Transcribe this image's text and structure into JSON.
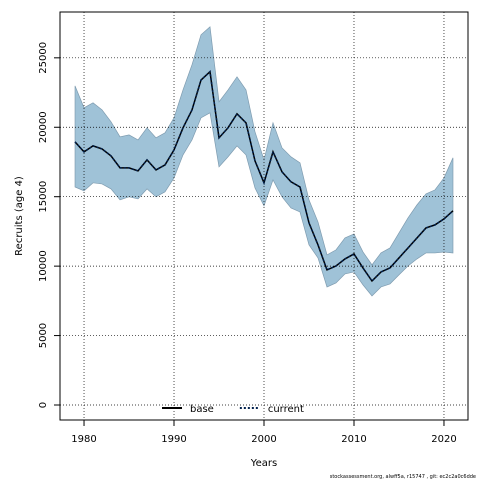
{
  "chart_data": {
    "type": "line",
    "xlabel": "Years",
    "ylabel": "Recruits (age 4)",
    "footnote": "stockassessment.org, alwff5a, r15747 , git: ec2c2a0c6dde",
    "x": [
      1979,
      1980,
      1981,
      1982,
      1983,
      1984,
      1985,
      1986,
      1987,
      1988,
      1989,
      1990,
      1991,
      1992,
      1993,
      1994,
      1995,
      1996,
      1997,
      1998,
      1999,
      2000,
      2001,
      2002,
      2003,
      2004,
      2005,
      2006,
      2007,
      2008,
      2009,
      2010,
      2011,
      2012,
      2013,
      2014,
      2015,
      2016,
      2017,
      2018,
      2019,
      2020,
      2021
    ],
    "series": [
      {
        "name": "base",
        "color": "#000000",
        "dash": false,
        "values": [
          18950,
          18230,
          18660,
          18440,
          17940,
          17075,
          17075,
          16860,
          17650,
          16930,
          17290,
          18370,
          19960,
          21250,
          23400,
          24000,
          19240,
          19960,
          20970,
          20320,
          17580,
          16000,
          18230,
          16790,
          16070,
          15700,
          13110,
          11530,
          9730,
          10010,
          10520,
          10880,
          9870,
          8930,
          9580,
          9870,
          10590,
          11310,
          12030,
          12750,
          12970,
          13400,
          13980
        ]
      },
      {
        "name": "current",
        "color": "#00204d",
        "dash": true,
        "values": [
          18950,
          18230,
          18660,
          18440,
          17940,
          17075,
          17075,
          16860,
          17650,
          16930,
          17290,
          18370,
          19960,
          21250,
          23400,
          24000,
          19240,
          19960,
          20970,
          20320,
          17580,
          16000,
          18230,
          16790,
          16070,
          15700,
          13110,
          11530,
          9730,
          10010,
          10520,
          10880,
          9870,
          8930,
          9580,
          9870,
          10590,
          11310,
          12030,
          12750,
          12970,
          13400,
          13980
        ]
      }
    ],
    "band": {
      "color": "#9fc2d7",
      "upper": [
        22980,
        21400,
        21760,
        21250,
        20390,
        19310,
        19450,
        19090,
        19960,
        19240,
        19600,
        20680,
        22690,
        24500,
        26660,
        27230,
        21830,
        22690,
        23630,
        22690,
        19670,
        17650,
        20320,
        18520,
        17870,
        17440,
        14770,
        13180,
        10810,
        11170,
        12030,
        12320,
        11020,
        10090,
        10950,
        11310,
        12390,
        13470,
        14410,
        15200,
        15490,
        16350,
        17800
      ],
      "lower": [
        15700,
        15420,
        16000,
        15920,
        15560,
        14770,
        14990,
        14840,
        15560,
        14990,
        15350,
        16350,
        18010,
        19090,
        20680,
        21040,
        17150,
        17870,
        18660,
        18010,
        15630,
        14340,
        16210,
        14990,
        14190,
        13900,
        11530,
        10590,
        8500,
        8790,
        9440,
        9580,
        8650,
        7850,
        8500,
        8720,
        9370,
        10010,
        10520,
        10950,
        10950,
        11020,
        10950
      ]
    },
    "xlim": [
      1977.33,
      2022.67
    ],
    "ylim": [
      -1080,
      28300
    ],
    "xticks": [
      1980,
      1990,
      2000,
      2010,
      2020
    ],
    "yticks": [
      0,
      5000,
      10000,
      15000,
      20000,
      25000
    ],
    "grid": true,
    "legend": "bottom"
  }
}
